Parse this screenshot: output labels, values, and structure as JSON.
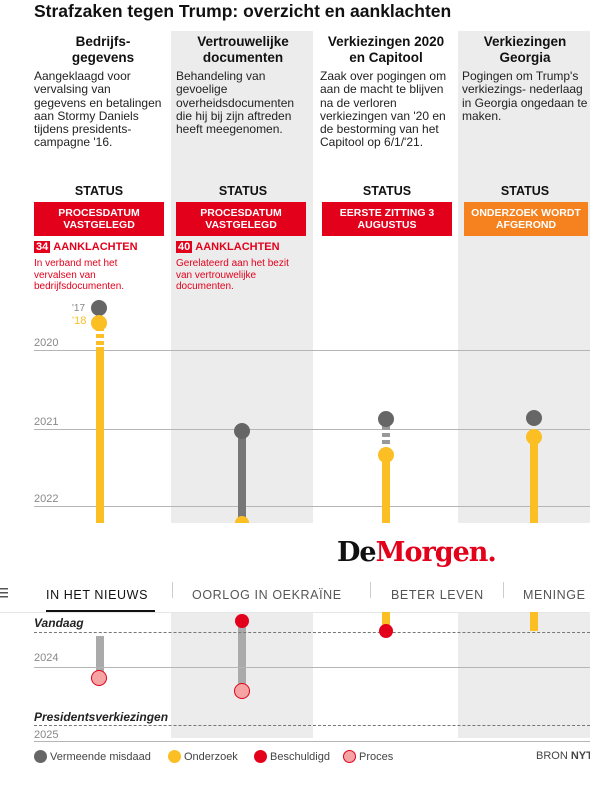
{
  "title": "Strafzaken tegen Trump: overzicht en aanklachten",
  "columns": [
    {
      "heading": "Bedrijfs- gegevens",
      "description": "Aangeklaagd voor vervalsing van gegevens en betalingen aan Stormy Daniels tijdens presidents- campagne '16.",
      "status_label": "STATUS",
      "status_badge": "PROCESDATUM VASTGELEGD",
      "charges_count": "34",
      "charges_label": "AANKLACHTEN",
      "charges_desc": "In verband met het vervalsen van bedrijfsdocumenten."
    },
    {
      "heading": "Vertrouwelijke documenten",
      "description": "Behandeling van gevoelige overheidsdocumenten die hij bij zijn aftreden heeft meegenomen.",
      "status_label": "STATUS",
      "status_badge": "PROCESDATUM VASTGELEGD",
      "charges_count": "40",
      "charges_label": "AANKLACHTEN",
      "charges_desc": "Gerelateerd aan het bezit van vertrouwelijke documenten."
    },
    {
      "heading": "Verkiezingen 2020 en Capitool",
      "description": "Zaak over pogingen om aan de macht te blijven na de verloren verkiezingen van '20 en de bestorming van het Capitool op 6/1/'21.",
      "status_label": "STATUS",
      "status_badge": "EERSTE ZITTING 3 AUGUSTUS"
    },
    {
      "heading": "Verkiezingen Georgia",
      "description": "Pogingen om Trump's verkiezings- nederlaag in Georgia ongedaan te maken.",
      "status_label": "STATUS",
      "status_badge": "ONDERZOEK WORDT AFGEROND"
    }
  ],
  "timeline": {
    "year_labels": [
      "2020",
      "2021",
      "2022",
      "2024",
      "2025"
    ],
    "early_labels": [
      "'17",
      "'18"
    ],
    "today_label": "Vandaag",
    "elections_label": "Presidentsverkiezingen"
  },
  "logo": {
    "part1": "De",
    "part2": "Morgen",
    "dot": "."
  },
  "nav": {
    "items": [
      "IN HET NIEUWS",
      "OORLOG IN OEKRAÏNE",
      "BETER LEVEN",
      "MENINGE"
    ],
    "active_index": 0
  },
  "legend": {
    "items": [
      {
        "label": "Vermeende misdaad",
        "color": "#666666"
      },
      {
        "label": "Onderzoek",
        "color": "#fbbf24"
      },
      {
        "label": "Beschuldigd",
        "color": "#e3001b"
      },
      {
        "label": "Proces",
        "color": "#f5a3a3"
      }
    ],
    "source_prefix": "BRON ",
    "source_name": "NYT"
  },
  "colors": {
    "red": "#e3001b",
    "orange": "#f5821f",
    "yellow": "#fbbf24",
    "grey_dot": "#666666",
    "grey_band": "#ececec"
  }
}
